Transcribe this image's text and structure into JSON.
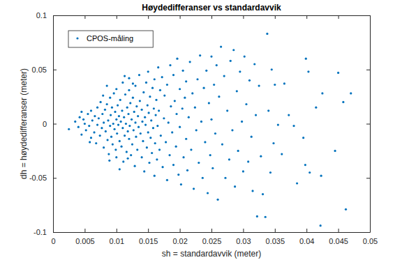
{
  "chart_data": {
    "type": "scatter",
    "title": "Høydedifferanser vs standardavvik",
    "x_label": "sh = standardavvik (meter)",
    "y_label": "dh = høydedifferanser (meter)",
    "xlim": [
      0,
      0.05
    ],
    "ylim": [
      -0.1,
      0.1
    ],
    "xticks": [
      0,
      0.005,
      0.01,
      0.015,
      0.02,
      0.025,
      0.03,
      0.035,
      0.04,
      0.045,
      0.05
    ],
    "yticks": [
      -0.1,
      -0.05,
      0,
      0.05,
      0.1
    ],
    "grid": false,
    "legend": "upper left",
    "x": [
      0.0025,
      0.0035,
      0.004,
      0.0042,
      0.0045,
      0.0048,
      0.005,
      0.0052,
      0.0055,
      0.0057,
      0.006,
      0.006,
      0.0062,
      0.0065,
      0.0066,
      0.0068,
      0.007,
      0.007,
      0.0045,
      0.0058,
      0.0072,
      0.0074,
      0.0075,
      0.0077,
      0.0078,
      0.008,
      0.008,
      0.0082,
      0.0083,
      0.0085,
      0.0086,
      0.0087,
      0.0088,
      0.009,
      0.009,
      0.0091,
      0.0092,
      0.0093,
      0.0094,
      0.0095,
      0.0096,
      0.0097,
      0.0098,
      0.0099,
      0.01,
      0.01,
      0.01,
      0.0085,
      0.0089,
      0.0079,
      0.0101,
      0.0102,
      0.0103,
      0.0104,
      0.0105,
      0.0106,
      0.0107,
      0.0108,
      0.0109,
      0.011,
      0.011,
      0.0111,
      0.0112,
      0.0113,
      0.0114,
      0.0115,
      0.0116,
      0.0117,
      0.0118,
      0.0119,
      0.012,
      0.012,
      0.012,
      0.0121,
      0.0122,
      0.0123,
      0.0124,
      0.0125,
      0.0126,
      0.0127,
      0.0128,
      0.0129,
      0.013,
      0.013,
      0.0131,
      0.0132,
      0.0133,
      0.0134,
      0.0135,
      0.0136,
      0.0113,
      0.0105,
      0.0126,
      0.0118,
      0.0137,
      0.0138,
      0.014,
      0.014,
      0.0141,
      0.0142,
      0.0143,
      0.0144,
      0.0145,
      0.0146,
      0.0147,
      0.0148,
      0.0149,
      0.015,
      0.015,
      0.0151,
      0.0152,
      0.0153,
      0.0154,
      0.0155,
      0.0156,
      0.0157,
      0.0158,
      0.0159,
      0.016,
      0.016,
      0.0161,
      0.0162,
      0.0163,
      0.0164,
      0.0165,
      0.0166,
      0.0167,
      0.0168,
      0.0169,
      0.017,
      0.0172,
      0.0173,
      0.0175,
      0.0176,
      0.0178,
      0.018,
      0.018,
      0.0182,
      0.0184,
      0.0185,
      0.0186,
      0.0188,
      0.019,
      0.019,
      0.0192,
      0.0194,
      0.0195,
      0.0196,
      0.0198,
      0.02,
      0.02,
      0.0202,
      0.0204,
      0.0205,
      0.0206,
      0.0208,
      0.021,
      0.021,
      0.0212,
      0.0214,
      0.0216,
      0.0218,
      0.022,
      0.0222,
      0.0224,
      0.0226,
      0.0228,
      0.023,
      0.0232,
      0.0234,
      0.0236,
      0.0238,
      0.024,
      0.0242,
      0.0244,
      0.0246,
      0.0248,
      0.025,
      0.025,
      0.0252,
      0.0254,
      0.0256,
      0.0258,
      0.026,
      0.0262,
      0.0265,
      0.0267,
      0.027,
      0.0272,
      0.0275,
      0.0278,
      0.028,
      0.0283,
      0.0285,
      0.0287,
      0.029,
      0.0292,
      0.0295,
      0.0298,
      0.03,
      0.0302,
      0.0305,
      0.0308,
      0.031,
      0.0313,
      0.0315,
      0.0318,
      0.032,
      0.0322,
      0.0325,
      0.0328,
      0.0331,
      0.0335,
      0.0338,
      0.034,
      0.0343,
      0.0345,
      0.0348,
      0.035,
      0.0355,
      0.0361,
      0.0365,
      0.0372,
      0.038,
      0.0385,
      0.0395,
      0.0398,
      0.0399,
      0.0403,
      0.0405,
      0.0415,
      0.0422,
      0.0423,
      0.0425,
      0.0445,
      0.045,
      0.0458,
      0.0462,
      0.047
    ],
    "series": [
      {
        "name": "CPOS-måling",
        "color": "#0072bd",
        "marker": "dot",
        "values": [
          -0.005,
          0.002,
          -0.003,
          0.006,
          -0.01,
          0.004,
          0,
          -0.006,
          0.009,
          -0.002,
          0.012,
          -0.013,
          0.003,
          -0.008,
          0.007,
          -0.018,
          0.015,
          -0.001,
          0.011,
          -0.017,
          0.005,
          -0.011,
          0.02,
          -0.004,
          0.009,
          -0.022,
          0.001,
          0.013,
          -0.007,
          0.018,
          -0.015,
          0.003,
          -0.028,
          0.024,
          -0.002,
          0.008,
          -0.012,
          0.015,
          -0.019,
          0,
          0.028,
          -0.005,
          0.011,
          -0.024,
          0.004,
          -0.031,
          0.032,
          0.035,
          -0.034,
          0.026,
          -0.009,
          0.017,
          -0.001,
          0.007,
          -0.016,
          0.022,
          0.002,
          -0.021,
          0.012,
          -0.004,
          0.038,
          -0.035,
          0.006,
          -0.011,
          0.027,
          0,
          -0.026,
          0.015,
          -0.007,
          0.009,
          -0.014,
          0.031,
          0.042,
          -0.002,
          0.019,
          -0.029,
          0.004,
          -0.019,
          0.024,
          -0.006,
          0.011,
          -0.039,
          0.001,
          0.035,
          -0.012,
          0.016,
          -0.024,
          0.007,
          -0.003,
          0.045,
          0.044,
          -0.042,
          0.037,
          -0.032,
          0.021,
          -0.009,
          0.013,
          -0.031,
          0.002,
          -0.016,
          0.029,
          -0.044,
          0.006,
          -0.001,
          0.038,
          -0.022,
          0.017,
          -0.008,
          0.048,
          0.01,
          -0.036,
          0.025,
          -0.013,
          0.003,
          -0.027,
          0.033,
          -0.004,
          0.014,
          -0.048,
          0.041,
          -0.018,
          0.008,
          0.022,
          -0.033,
          -0.002,
          0.052,
          0.012,
          -0.024,
          0.031,
          -0.011,
          0.043,
          -0.04,
          0.005,
          0.026,
          -0.017,
          0.036,
          -0.052,
          0.001,
          -0.029,
          0.054,
          0.016,
          -0.008,
          0.045,
          -0.038,
          0.021,
          -0.021,
          0.009,
          0.06,
          -0.047,
          0.032,
          -0.003,
          -0.056,
          0.014,
          0.049,
          -0.031,
          0.024,
          -0.014,
          0.039,
          -0.043,
          0.006,
          0.057,
          -0.024,
          0.028,
          -0.06,
          0.015,
          -0.006,
          0.041,
          -0.036,
          0.063,
          0.002,
          -0.05,
          0.033,
          -0.017,
          0.049,
          -0.064,
          0.019,
          -0.029,
          0.062,
          0.004,
          -0.041,
          0.036,
          -0.009,
          0.054,
          -0.07,
          0.025,
          0.071,
          -0.019,
          0.044,
          -0.05,
          0.012,
          -0.033,
          0.058,
          -0.006,
          0.068,
          -0.058,
          0.03,
          -0.025,
          0.048,
          0.002,
          -0.044,
          0.062,
          0.018,
          -0.035,
          0.04,
          -0.012,
          -0.062,
          0.055,
          0.008,
          -0.0855,
          0.035,
          -0.03,
          -0.065,
          -0.086,
          0.083,
          0.012,
          -0.045,
          0.05,
          -0.018,
          0.036,
          -0.001,
          -0.028,
          0.037,
          0.008,
          -0.002,
          -0.055,
          -0.013,
          -0.038,
          0.06,
          0.048,
          -0.045,
          0.015,
          -0.094,
          -0.048,
          0.028,
          -0.025,
          0.047,
          0.02,
          -0.079,
          0.028
        ]
      }
    ]
  }
}
